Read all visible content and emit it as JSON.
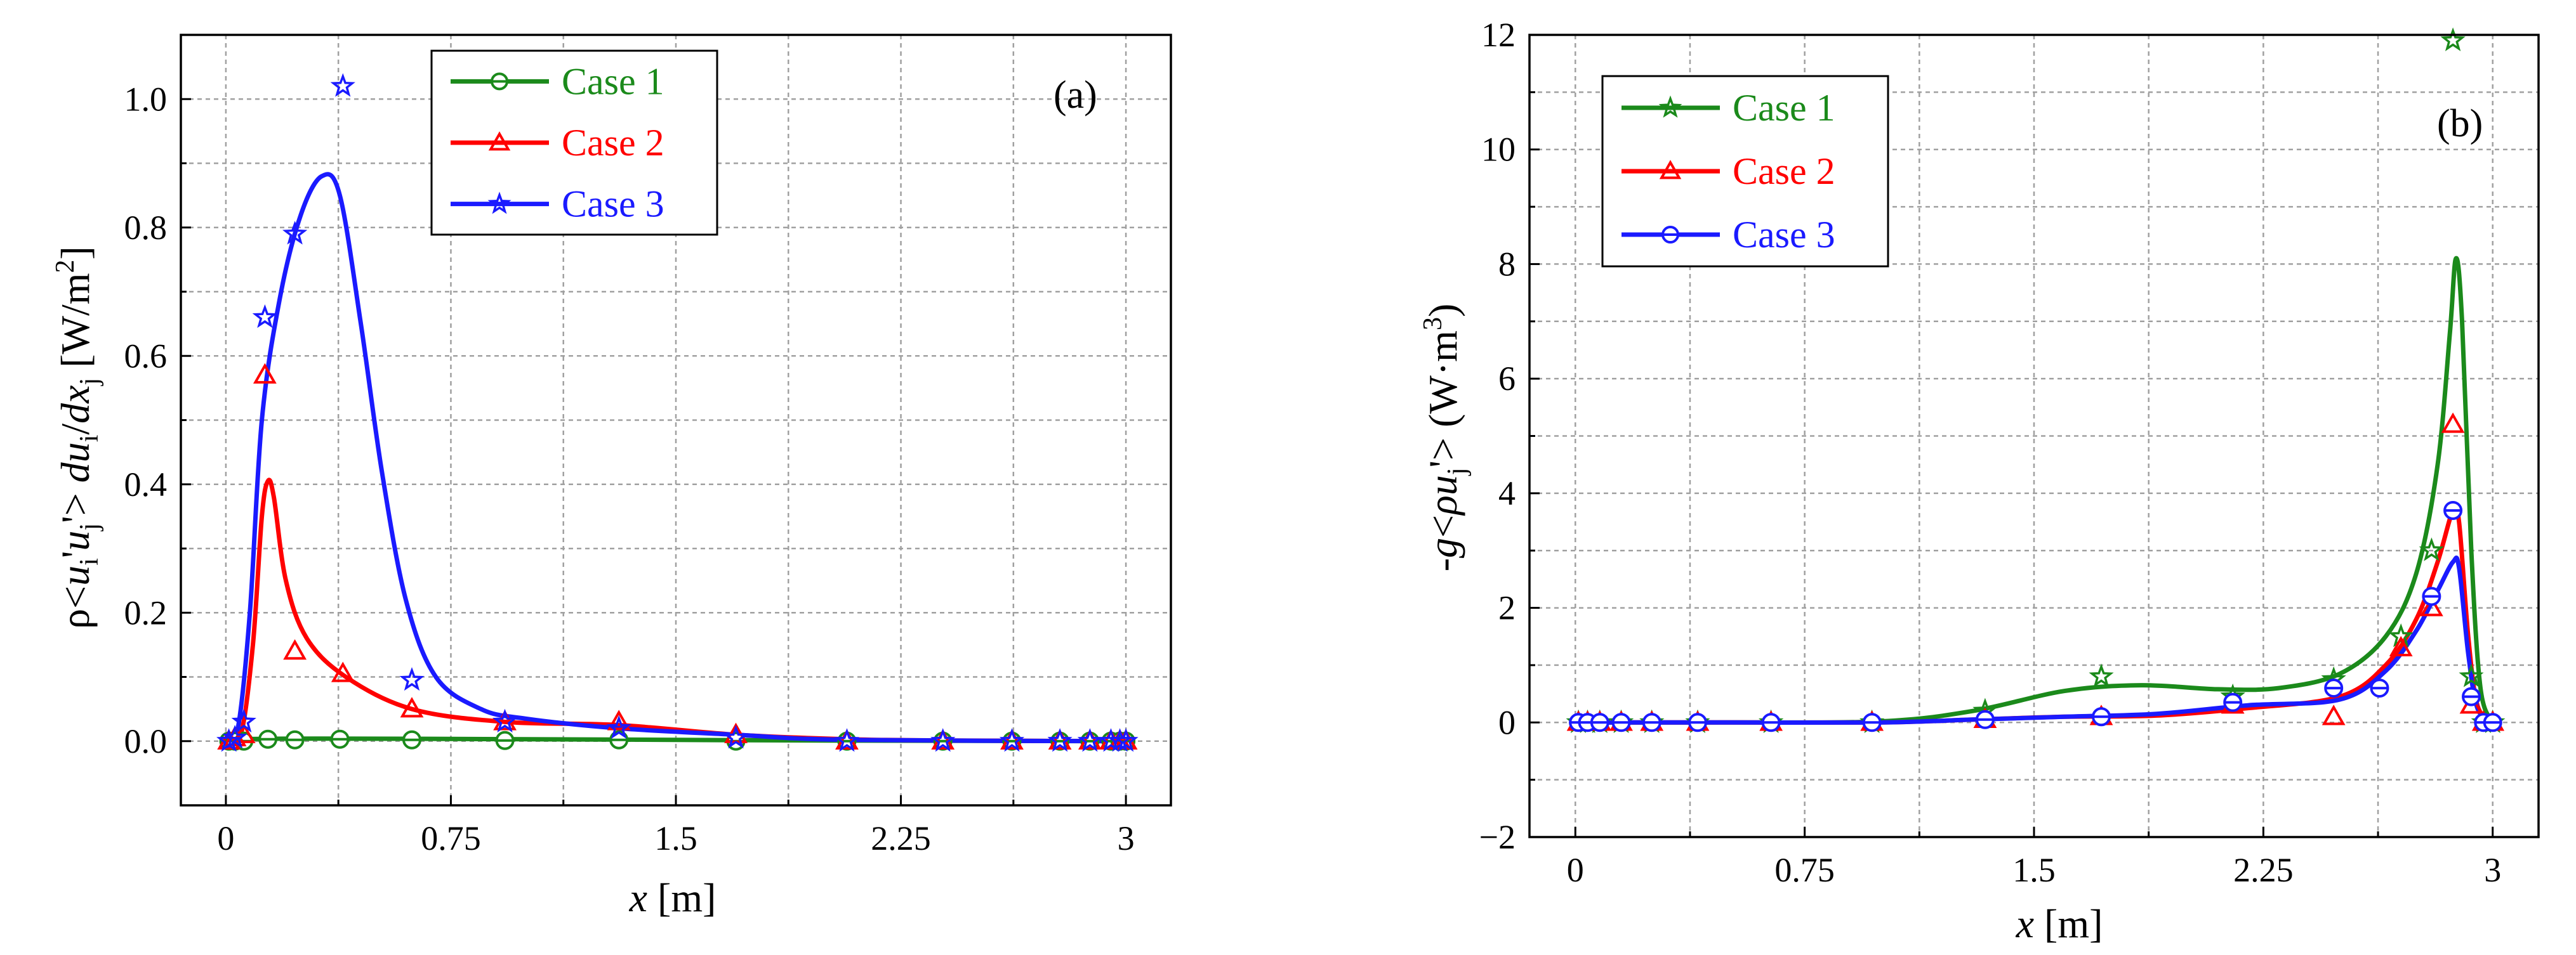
{
  "chart_data": [
    {
      "type": "line",
      "panel_label": "(a)",
      "xlabel": "x [m]",
      "ylabel": "ρ<u_i'u_j'> du_i/dx_j [W/m^2]",
      "xlim": [
        -0.15,
        3.15
      ],
      "ylim": [
        -0.1,
        1.1
      ],
      "x_ticks": [
        0,
        0.75,
        1.5,
        2.25,
        3
      ],
      "x_tick_labels": [
        "0",
        "0.75",
        "1.5",
        "2.25",
        "3"
      ],
      "y_ticks": [
        0.0,
        0.2,
        0.4,
        0.6,
        0.8,
        1.0
      ],
      "y_tick_labels": [
        "0.0",
        "0.2",
        "0.4",
        "0.6",
        "0.8",
        "1.0"
      ],
      "grid": true,
      "legend_position": "top-center",
      "series": [
        {
          "name": "Case 1",
          "color": "#1b8a1b",
          "marker": "circle",
          "curve": [
            [
              0,
              0
            ],
            [
              0.05,
              0.003
            ],
            [
              0.3,
              0.004
            ],
            [
              1.0,
              0.003
            ],
            [
              1.5,
              0.002
            ],
            [
              2.0,
              0.001
            ],
            [
              3.0,
              0.0
            ]
          ],
          "points": [
            [
              0.01,
              0
            ],
            [
              0.03,
              0
            ],
            [
              0.06,
              0
            ],
            [
              0.14,
              0.003
            ],
            [
              0.23,
              0.002
            ],
            [
              0.38,
              0.003
            ],
            [
              0.62,
              0.002
            ],
            [
              0.93,
              0.001
            ],
            [
              1.31,
              0.002
            ],
            [
              1.7,
              0
            ],
            [
              2.07,
              0
            ],
            [
              2.39,
              0
            ],
            [
              2.62,
              0
            ],
            [
              2.78,
              0
            ],
            [
              2.88,
              0
            ],
            [
              2.95,
              0
            ],
            [
              2.98,
              0
            ],
            [
              3.0,
              0
            ]
          ]
        },
        {
          "name": "Case 2",
          "color": "#ff0000",
          "marker": "triangle",
          "curve": [
            [
              0,
              0
            ],
            [
              0.05,
              0.01
            ],
            [
              0.09,
              0.15
            ],
            [
              0.12,
              0.35
            ],
            [
              0.14,
              0.405
            ],
            [
              0.16,
              0.38
            ],
            [
              0.2,
              0.25
            ],
            [
              0.27,
              0.16
            ],
            [
              0.4,
              0.1
            ],
            [
              0.62,
              0.05
            ],
            [
              0.93,
              0.03
            ],
            [
              1.31,
              0.025
            ],
            [
              1.7,
              0.01
            ],
            [
              2.07,
              0.003
            ],
            [
              2.39,
              0.001
            ],
            [
              3.0,
              0.0
            ]
          ],
          "points": [
            [
              0.01,
              0
            ],
            [
              0.03,
              0.005
            ],
            [
              0.06,
              0.01
            ],
            [
              0.13,
              0.57
            ],
            [
              0.23,
              0.14
            ],
            [
              0.39,
              0.105
            ],
            [
              0.62,
              0.05
            ],
            [
              0.93,
              0.03
            ],
            [
              1.31,
              0.03
            ],
            [
              1.7,
              0.01
            ],
            [
              2.07,
              0
            ],
            [
              2.39,
              0
            ],
            [
              2.62,
              0
            ],
            [
              2.78,
              0
            ],
            [
              2.88,
              0
            ],
            [
              2.95,
              0
            ],
            [
              2.98,
              0
            ],
            [
              3.0,
              0
            ]
          ]
        },
        {
          "name": "Case 3",
          "color": "#1a1aff",
          "marker": "star",
          "curve": [
            [
              0,
              0
            ],
            [
              0.04,
              0.02
            ],
            [
              0.08,
              0.2
            ],
            [
              0.12,
              0.5
            ],
            [
              0.18,
              0.69
            ],
            [
              0.25,
              0.82
            ],
            [
              0.32,
              0.88
            ],
            [
              0.38,
              0.85
            ],
            [
              0.45,
              0.65
            ],
            [
              0.52,
              0.42
            ],
            [
              0.6,
              0.22
            ],
            [
              0.7,
              0.1
            ],
            [
              0.85,
              0.05
            ],
            [
              1.0,
              0.035
            ],
            [
              1.31,
              0.02
            ],
            [
              1.7,
              0.01
            ],
            [
              2.07,
              0.002
            ],
            [
              3.0,
              0.0
            ]
          ],
          "points": [
            [
              0.01,
              0
            ],
            [
              0.03,
              0.005
            ],
            [
              0.06,
              0.03
            ],
            [
              0.13,
              0.66
            ],
            [
              0.23,
              0.79
            ],
            [
              0.39,
              1.02
            ],
            [
              0.62,
              0.095
            ],
            [
              0.93,
              0.03
            ],
            [
              1.31,
              0.02
            ],
            [
              1.7,
              0.005
            ],
            [
              2.07,
              0
            ],
            [
              2.39,
              0
            ],
            [
              2.62,
              0
            ],
            [
              2.78,
              0
            ],
            [
              2.88,
              0
            ],
            [
              2.95,
              0
            ],
            [
              2.98,
              0
            ],
            [
              3.0,
              0
            ]
          ]
        }
      ]
    },
    {
      "type": "line",
      "panel_label": "(b)",
      "xlabel": "x [m]",
      "ylabel": "-g<ρu_j'> (W·m^3)",
      "xlim": [
        -0.15,
        3.15
      ],
      "ylim": [
        -2,
        12
      ],
      "x_ticks": [
        0,
        0.75,
        1.5,
        2.25,
        3
      ],
      "x_tick_labels": [
        "0",
        "0.75",
        "1.5",
        "2.25",
        "3"
      ],
      "y_ticks": [
        -2,
        0,
        2,
        4,
        6,
        8,
        10,
        12
      ],
      "y_tick_labels": [
        "−2",
        "0",
        "2",
        "4",
        "6",
        "8",
        "10",
        "12"
      ],
      "grid": true,
      "legend_position": "top-left",
      "series": [
        {
          "name": "Case 1",
          "color": "#1b8a1b",
          "marker": "star",
          "curve": [
            [
              0,
              0
            ],
            [
              0.5,
              0
            ],
            [
              1.0,
              0.02
            ],
            [
              1.3,
              0.2
            ],
            [
              1.6,
              0.55
            ],
            [
              1.85,
              0.65
            ],
            [
              2.1,
              0.58
            ],
            [
              2.3,
              0.6
            ],
            [
              2.5,
              0.85
            ],
            [
              2.65,
              1.5
            ],
            [
              2.75,
              2.6
            ],
            [
              2.82,
              4.5
            ],
            [
              2.86,
              6.8
            ],
            [
              2.88,
              8.1
            ],
            [
              2.9,
              7.0
            ],
            [
              2.93,
              3.0
            ],
            [
              2.96,
              0.6
            ],
            [
              3.0,
              0.0
            ]
          ],
          "points": [
            [
              0.01,
              0
            ],
            [
              0.04,
              0
            ],
            [
              0.08,
              0
            ],
            [
              0.15,
              0
            ],
            [
              0.25,
              0
            ],
            [
              0.4,
              0
            ],
            [
              0.64,
              0
            ],
            [
              0.97,
              0
            ],
            [
              1.34,
              0.2
            ],
            [
              1.72,
              0.8
            ],
            [
              2.15,
              0.45
            ],
            [
              2.48,
              0.75
            ],
            [
              2.7,
              1.5
            ],
            [
              2.8,
              3.0
            ],
            [
              2.87,
              11.9
            ],
            [
              2.93,
              0.8
            ],
            [
              2.97,
              0
            ],
            [
              3.0,
              0
            ]
          ]
        },
        {
          "name": "Case 2",
          "color": "#ff0000",
          "marker": "triangle",
          "curve": [
            [
              0,
              0
            ],
            [
              0.5,
              0
            ],
            [
              1.0,
              0
            ],
            [
              1.3,
              0.05
            ],
            [
              1.6,
              0.1
            ],
            [
              1.9,
              0.12
            ],
            [
              2.2,
              0.25
            ],
            [
              2.5,
              0.45
            ],
            [
              2.65,
              1.0
            ],
            [
              2.75,
              1.8
            ],
            [
              2.82,
              2.8
            ],
            [
              2.87,
              3.7
            ],
            [
              2.89,
              3.5
            ],
            [
              2.92,
              1.5
            ],
            [
              2.95,
              0.3
            ],
            [
              3.0,
              0.0
            ]
          ],
          "points": [
            [
              0.01,
              0
            ],
            [
              0.04,
              0
            ],
            [
              0.08,
              0
            ],
            [
              0.15,
              0
            ],
            [
              0.25,
              0
            ],
            [
              0.4,
              0
            ],
            [
              0.64,
              0
            ],
            [
              0.97,
              0
            ],
            [
              1.34,
              0.05
            ],
            [
              1.72,
              0.1
            ],
            [
              2.15,
              0.3
            ],
            [
              2.48,
              0.1
            ],
            [
              2.7,
              1.3
            ],
            [
              2.8,
              2.0
            ],
            [
              2.87,
              5.2
            ],
            [
              2.93,
              0.3
            ],
            [
              2.97,
              0
            ],
            [
              3.0,
              0
            ]
          ]
        },
        {
          "name": "Case 3",
          "color": "#1a1aff",
          "marker": "circle",
          "curve": [
            [
              0,
              0
            ],
            [
              0.5,
              0
            ],
            [
              1.0,
              0.0
            ],
            [
              1.3,
              0.05
            ],
            [
              1.6,
              0.1
            ],
            [
              1.9,
              0.15
            ],
            [
              2.2,
              0.3
            ],
            [
              2.5,
              0.4
            ],
            [
              2.65,
              0.9
            ],
            [
              2.75,
              1.6
            ],
            [
              2.82,
              2.3
            ],
            [
              2.87,
              2.8
            ],
            [
              2.89,
              2.7
            ],
            [
              2.92,
              1.2
            ],
            [
              2.95,
              0.25
            ],
            [
              3.0,
              0.0
            ]
          ],
          "points": [
            [
              0.01,
              0
            ],
            [
              0.04,
              0
            ],
            [
              0.08,
              0
            ],
            [
              0.15,
              0
            ],
            [
              0.25,
              0
            ],
            [
              0.4,
              0
            ],
            [
              0.64,
              0
            ],
            [
              0.97,
              0
            ],
            [
              1.34,
              0.05
            ],
            [
              1.72,
              0.1
            ],
            [
              2.15,
              0.35
            ],
            [
              2.48,
              0.6
            ],
            [
              2.63,
              0.6
            ],
            [
              2.8,
              2.2
            ],
            [
              2.87,
              3.7
            ],
            [
              2.93,
              0.45
            ],
            [
              2.97,
              0
            ],
            [
              3.0,
              0
            ]
          ]
        }
      ]
    }
  ]
}
